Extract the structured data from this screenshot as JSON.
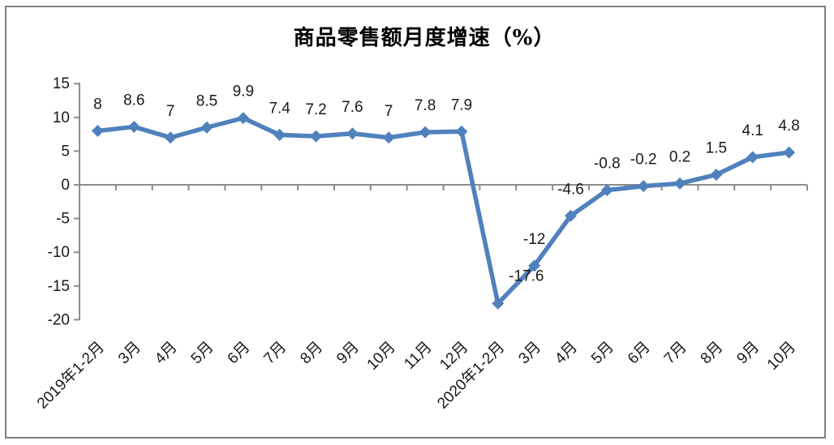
{
  "frame": {
    "background": "#FFFFFF",
    "border_color": "#7F7F7F"
  },
  "chart_data": {
    "type": "line",
    "title": "商品零售额月度增速（%）",
    "categories": [
      "2019年1-2月",
      "3月",
      "4月",
      "5月",
      "6月",
      "7月",
      "8月",
      "9月",
      "10月",
      "11月",
      "12月",
      "2020年1-2月",
      "3月",
      "4月",
      "5月",
      "6月",
      "7月",
      "8月",
      "9月",
      "10月"
    ],
    "values": [
      8,
      8.6,
      7,
      8.5,
      9.9,
      7.4,
      7.2,
      7.6,
      7,
      7.8,
      7.9,
      -17.6,
      -12,
      -4.6,
      -0.8,
      -0.2,
      0.2,
      1.5,
      4.1,
      4.8
    ],
    "data_labels": [
      "8",
      "8.6",
      "7",
      "8.5",
      "9.9",
      "7.4",
      "7.2",
      "7.6",
      "7",
      "7.8",
      "7.9",
      "-17.6",
      "-12",
      "-4.6",
      "-0.8",
      "-0.2",
      "0.2",
      "1.5",
      "4.1",
      "4.8"
    ],
    "yticks": [
      15,
      10,
      5,
      0,
      -5,
      -10,
      -15,
      -20
    ],
    "ylim": [
      -20,
      15
    ],
    "xlabel": "",
    "ylabel": "",
    "grid": false,
    "legend": "none",
    "line_color": "#4F81BD",
    "marker": "diamond",
    "axis_color": "#8C8C8C",
    "text_color": "#1A1A1A",
    "label_offsets": {
      "11": {
        "dx": 35,
        "dy": -1
      }
    }
  }
}
